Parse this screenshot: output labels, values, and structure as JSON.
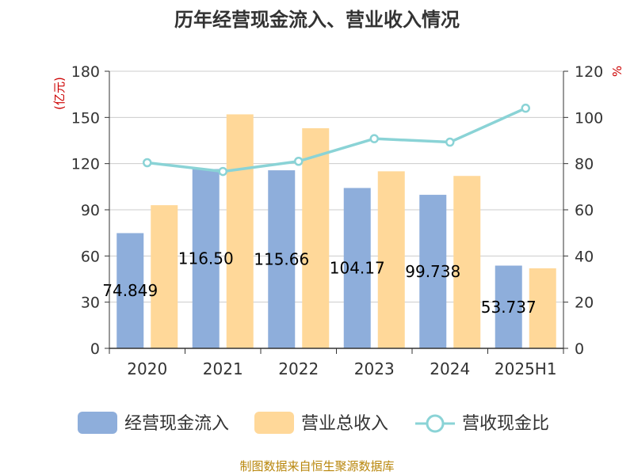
{
  "chart_data": {
    "type": "bar",
    "title": "历年经营现金流入、营业收入情况",
    "categories": [
      "2020",
      "2021",
      "2022",
      "2023",
      "2024",
      "2025H1"
    ],
    "y_left": {
      "unit": "(亿元)",
      "min": 0,
      "max": 180,
      "ticks": [
        "0",
        "30",
        "60",
        "90",
        "120",
        "150",
        "180"
      ]
    },
    "y_right": {
      "unit": "%",
      "min": 0,
      "max": 120,
      "ticks": [
        "0",
        "20",
        "40",
        "60",
        "80",
        "100",
        "120"
      ]
    },
    "grid": true,
    "legend_position": "bottom",
    "series": [
      {
        "name": "经营现金流入",
        "kind": "bar",
        "axis": "left",
        "color": "#8eaedb",
        "values": [
          74.849,
          116.5,
          115.66,
          104.17,
          99.738,
          53.737
        ],
        "labels": [
          "74.849",
          "116.50",
          "115.66",
          "104.17",
          "99.738",
          "53.737"
        ]
      },
      {
        "name": "营业总收入",
        "kind": "bar",
        "axis": "left",
        "color": "#ffd899",
        "values": [
          93,
          152,
          143,
          115,
          112,
          52
        ]
      },
      {
        "name": "营收现金比",
        "kind": "line",
        "axis": "right",
        "color": "#8ad3d6",
        "values": [
          80.4,
          76.6,
          81.0,
          90.8,
          89.3,
          104.0
        ]
      }
    ],
    "source": "制图数据来自恒生聚源数据库"
  }
}
